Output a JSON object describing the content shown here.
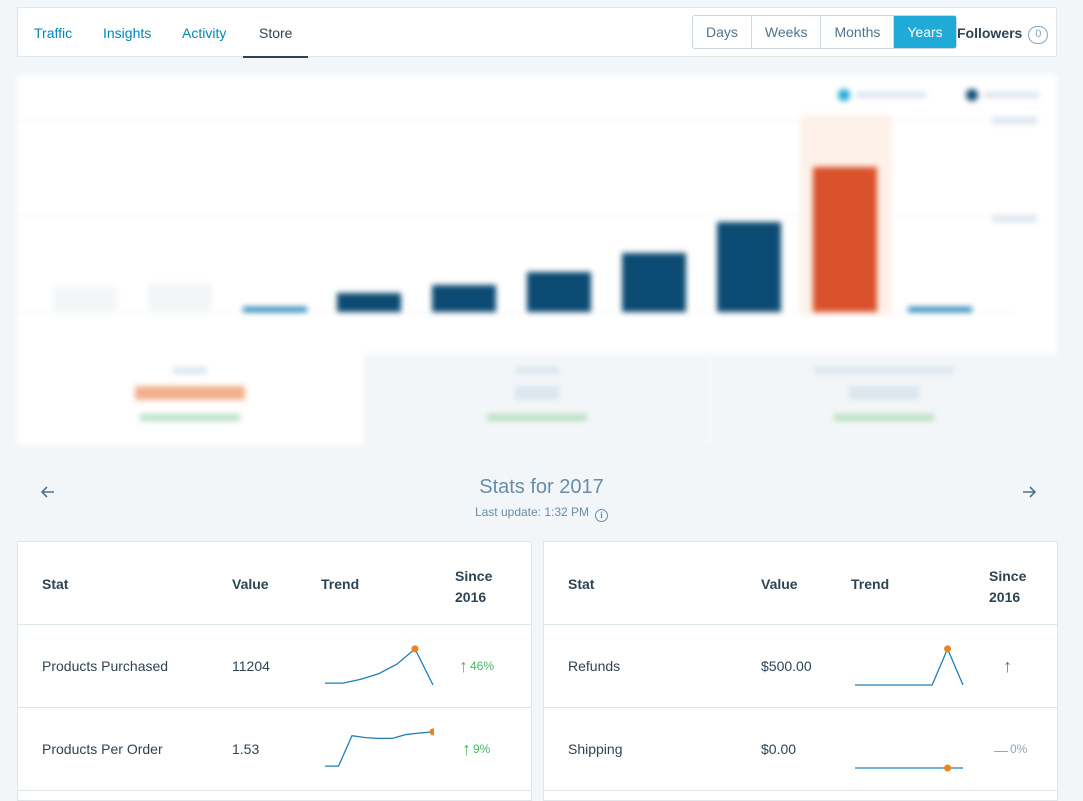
{
  "nav": {
    "tabs": [
      {
        "label": "Traffic"
      },
      {
        "label": "Insights"
      },
      {
        "label": "Activity"
      },
      {
        "label": "Store"
      }
    ],
    "periods": [
      {
        "label": "Days"
      },
      {
        "label": "Weeks"
      },
      {
        "label": "Months"
      },
      {
        "label": "Years"
      }
    ],
    "followers_label": "Followers",
    "followers_count": "0"
  },
  "colors": {
    "accent": "#1faad7",
    "link": "#0087be",
    "bar_dark": "#0b4a72",
    "bar_highlight": "#d9522b",
    "positive": "#4ab866",
    "negative": "#e23e3e"
  },
  "stats": {
    "title": "Stats for 2017",
    "last_update": "Last update: 1:32 PM"
  },
  "tables": [
    {
      "headers": {
        "stat": "Stat",
        "value": "Value",
        "trend": "Trend",
        "since_line1": "Since",
        "since_line2": "2016"
      },
      "rows": [
        {
          "stat": "Products Purchased",
          "value": "11204",
          "delta": "46%",
          "direction": "up",
          "trend": [
            0.05,
            0.05,
            0.15,
            0.3,
            0.55,
            0.95,
            0.0
          ]
        },
        {
          "stat": "Products Per Order",
          "value": "1.53",
          "delta": "9%",
          "direction": "up",
          "trend": [
            0.05,
            0.05,
            0.85,
            0.8,
            0.78,
            0.78,
            0.88,
            0.92,
            0.95
          ]
        }
      ]
    },
    {
      "headers": {
        "stat": "Stat",
        "value": "Value",
        "trend": "Trend",
        "since_line1": "Since",
        "since_line2": "2016"
      },
      "rows": [
        {
          "stat": "Refunds",
          "value": "$500.00",
          "delta": "",
          "direction": "up-red",
          "trend": [
            0.0,
            0.0,
            0.0,
            0.0,
            0.0,
            0.0,
            0.95,
            0.0
          ]
        },
        {
          "stat": "Shipping",
          "value": "$0.00",
          "delta": "0%",
          "direction": "neutral",
          "trend": [
            0.0,
            0.0,
            0.0,
            0.0,
            0.0,
            0.0,
            0.0,
            0.0
          ]
        }
      ]
    }
  ]
}
